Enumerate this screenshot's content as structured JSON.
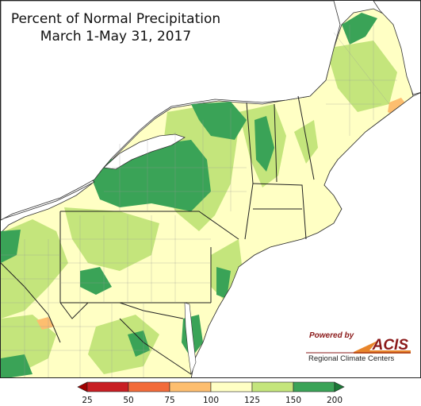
{
  "title": {
    "line1": "Percent of Normal Precipitation",
    "line2": "March 1-May 31, 2017"
  },
  "logo": {
    "powered_by": "Powered by",
    "name": "ACIS",
    "subtitle": "Regional Climate Centers"
  },
  "legend": {
    "bins": [
      {
        "color": "#c81e23"
      },
      {
        "color": "#f26b3a"
      },
      {
        "color": "#fdbe6f"
      },
      {
        "color": "#ffffc4"
      },
      {
        "color": "#c4e57c"
      },
      {
        "color": "#3aa357"
      }
    ],
    "ticks": [
      "25",
      "50",
      "75",
      "100",
      "125",
      "150",
      "200"
    ],
    "under_color": "#a10000",
    "over_color": "#1b7837"
  },
  "colors": {
    "water": "#ffffff",
    "near_normal": "#ffffc4",
    "wet": "#c4e57c",
    "very_wet": "#3aa357",
    "dry": "#fdbe6f"
  }
}
